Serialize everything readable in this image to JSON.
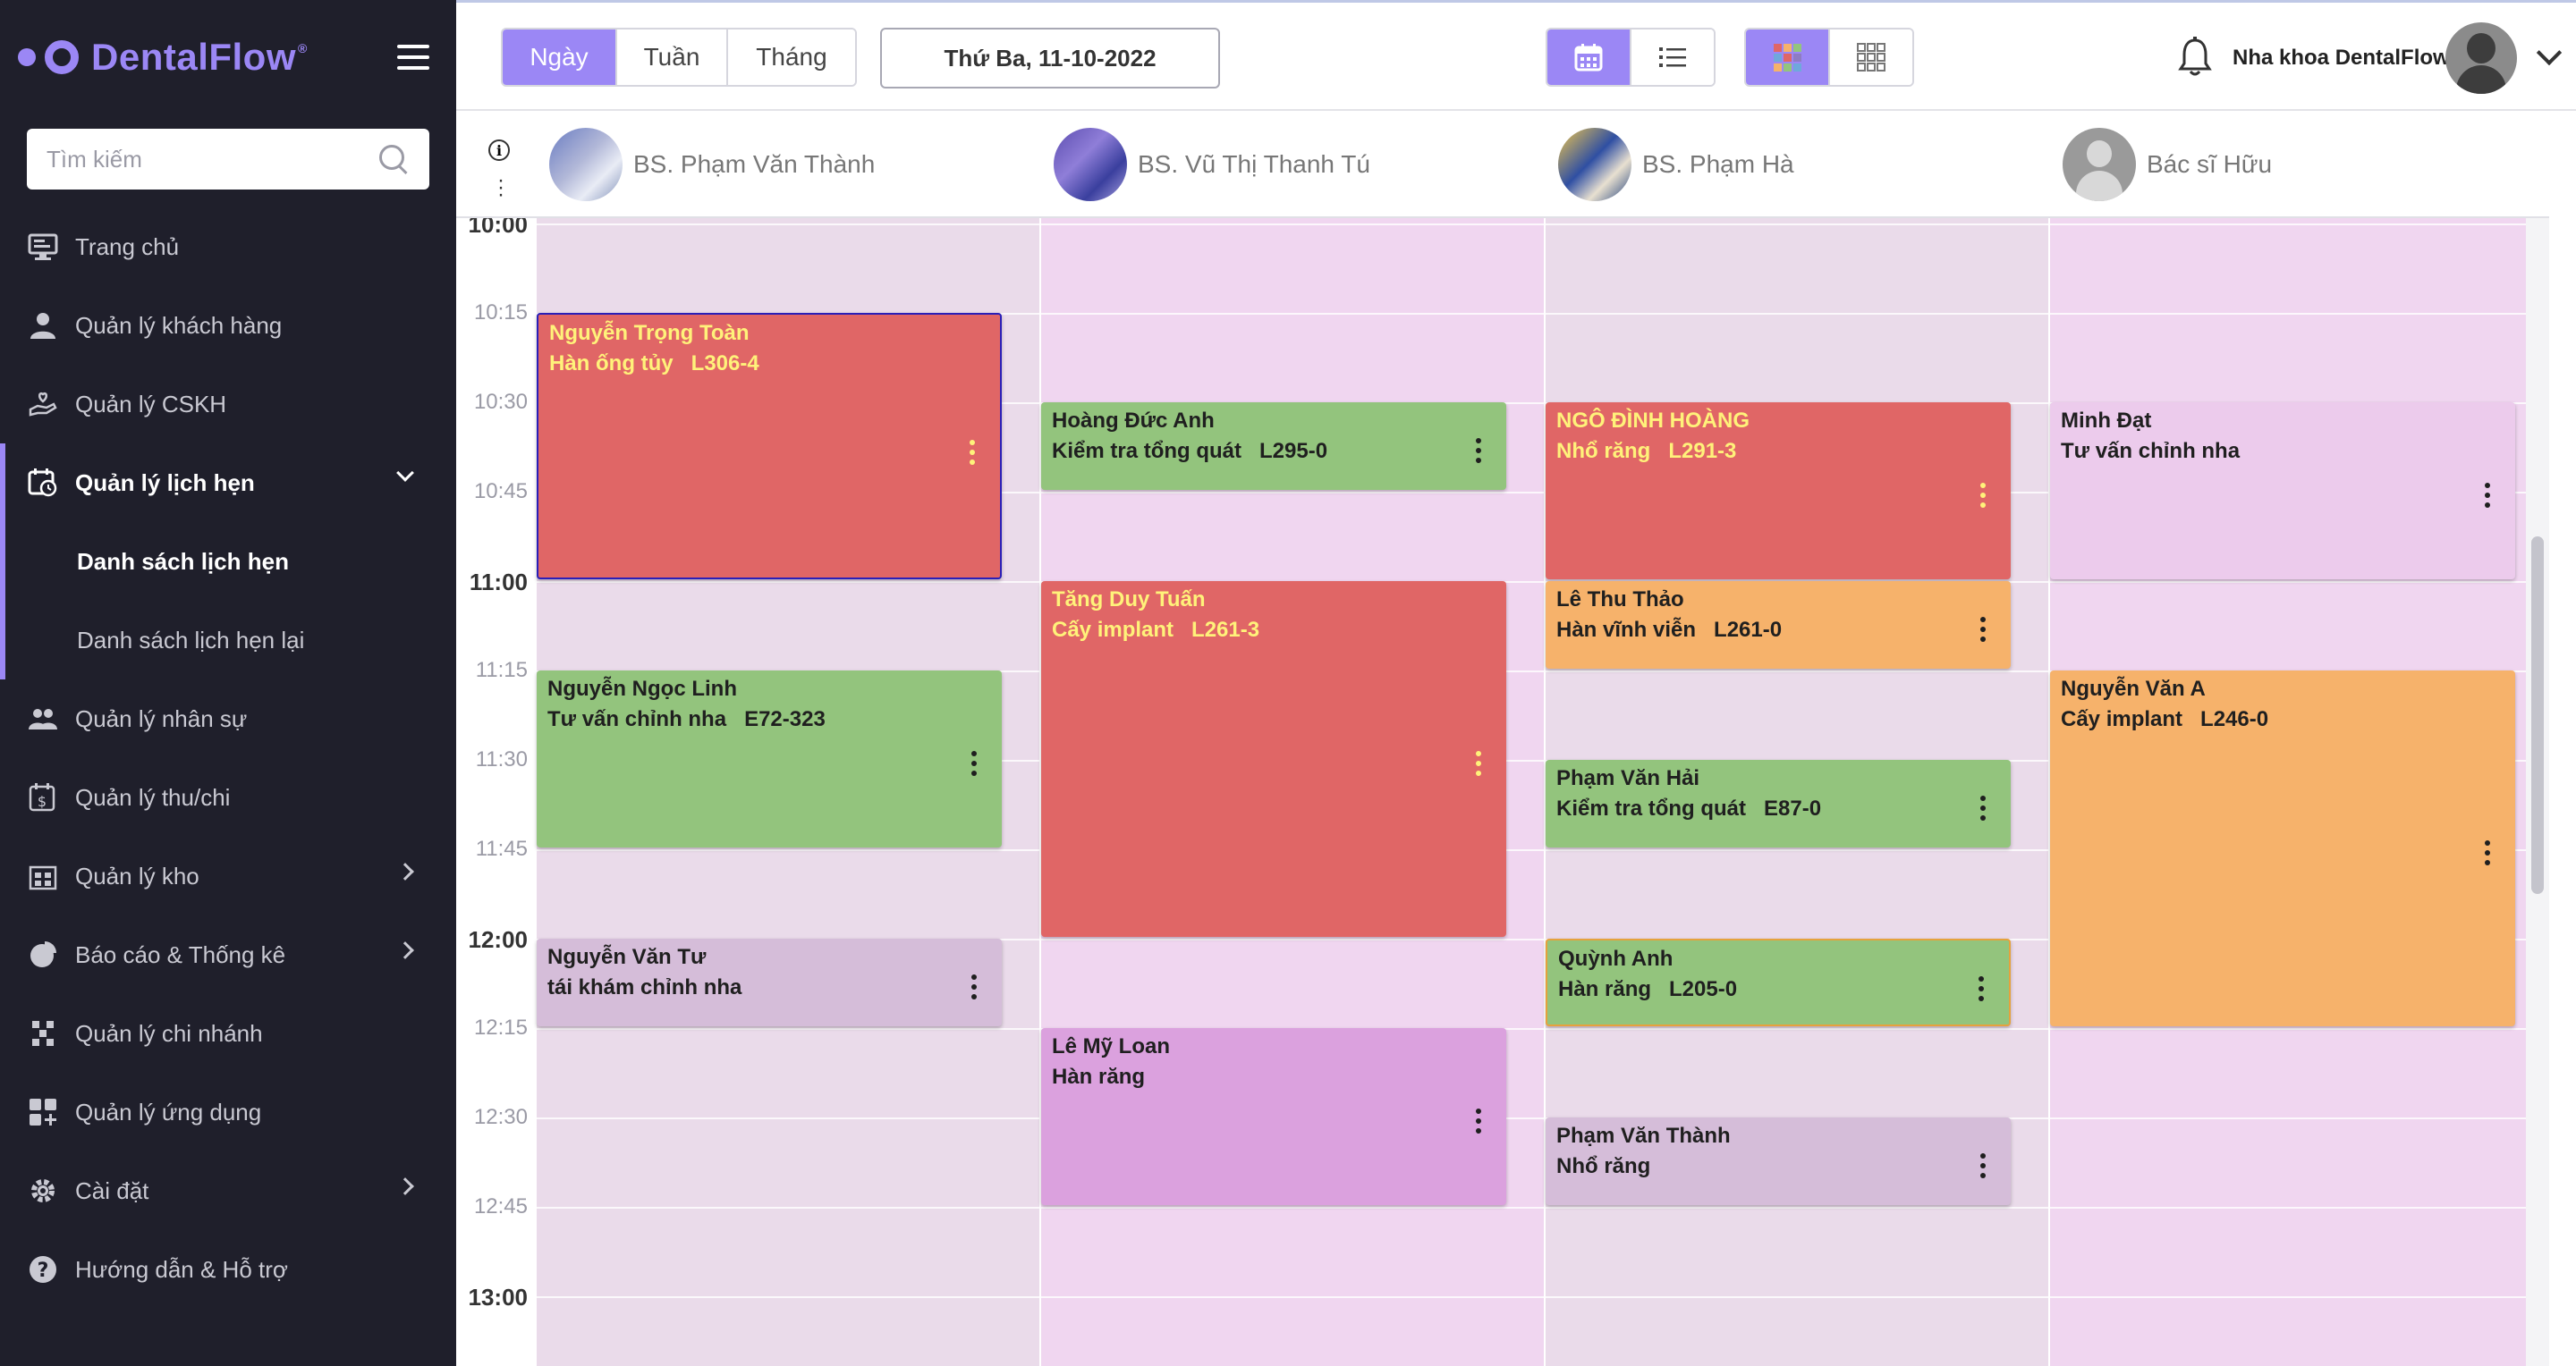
{
  "sidebar": {
    "brand": "DentalFlow",
    "brand_mark": "®",
    "search_placeholder": "Tìm kiếm",
    "items": [
      {
        "label": "Trang chủ",
        "icon": "monitor-icon"
      },
      {
        "label": "Quản lý khách hàng",
        "icon": "customer-icon"
      },
      {
        "label": "Quản lý CSKH",
        "icon": "hand-heart-icon"
      },
      {
        "label": "Quản lý lịch hẹn",
        "icon": "calendar-clock-icon",
        "expanded": true
      },
      {
        "label": "Quản lý nhân sự",
        "icon": "people-icon"
      },
      {
        "label": "Quản lý thu/chi",
        "icon": "money-icon"
      },
      {
        "label": "Quản lý kho",
        "icon": "warehouse-icon"
      },
      {
        "label": "Báo cáo & Thống kê",
        "icon": "pie-chart-icon"
      },
      {
        "label": "Quản lý chi nhánh",
        "icon": "branch-icon"
      },
      {
        "label": "Quản lý ứng dụng",
        "icon": "apps-icon"
      },
      {
        "label": "Cài đặt",
        "icon": "gear-icon"
      },
      {
        "label": "Hướng dẫn & Hỗ trợ",
        "icon": "help-icon"
      }
    ],
    "subitems": [
      "Danh sách lịch hẹn",
      "Danh sách lịch hẹn lại"
    ]
  },
  "topbar": {
    "views": [
      "Ngày",
      "Tuần",
      "Tháng"
    ],
    "active_view": "Ngày",
    "date": "Thứ Ba, 11-10-2022",
    "clinic_name": "Nha khoa DentalFlow"
  },
  "calendar": {
    "doctors": [
      "BS. Phạm Văn Thành",
      "BS. Vũ Thị Thanh Tú",
      "BS. Phạm Hà",
      "Bác sĩ Hữu"
    ],
    "times": [
      "10:00",
      "10:15",
      "10:30",
      "10:45",
      "11:00",
      "11:15",
      "11:30",
      "11:45",
      "12:00",
      "12:15",
      "12:30",
      "12:45",
      "13:00"
    ],
    "appointments": [
      {
        "doctor": 0,
        "start": "10:15",
        "end": "11:00",
        "name": "Nguyễn Trọng Toàn",
        "service": "Hàn ống tủy   L306-4",
        "status": "red"
      },
      {
        "doctor": 0,
        "start": "11:15",
        "end": "11:45",
        "name": "Nguyễn Ngọc Linh",
        "service": "Tư vấn chỉnh nha   E72-323",
        "status": "green"
      },
      {
        "doctor": 0,
        "start": "12:00",
        "end": "12:15",
        "name": "Nguyễn Văn Tư",
        "service": "tái khám chỉnh nha",
        "status": "mauve"
      },
      {
        "doctor": 1,
        "start": "10:30",
        "end": "10:45",
        "name": "Hoàng Đức Anh",
        "service": "Kiểm tra tổng quát   L295-0",
        "status": "green"
      },
      {
        "doctor": 1,
        "start": "11:00",
        "end": "12:00",
        "name": "Tăng Duy Tuấn",
        "service": "Cấy implant   L261-3",
        "status": "red"
      },
      {
        "doctor": 1,
        "start": "12:15",
        "end": "12:45",
        "name": "Lê Mỹ Loan",
        "service": "Hàn răng",
        "status": "violet"
      },
      {
        "doctor": 2,
        "start": "10:30",
        "end": "11:00",
        "name": "NGÔ ĐÌNH HOÀNG",
        "service": "Nhổ răng   L291-3",
        "status": "red"
      },
      {
        "doctor": 2,
        "start": "11:00",
        "end": "11:15",
        "name": "Lê Thu Thảo",
        "service": "Hàn vĩnh viễn   L261-0",
        "status": "orange"
      },
      {
        "doctor": 2,
        "start": "11:30",
        "end": "11:45",
        "name": "Phạm Văn Hải",
        "service": "Kiểm tra tổng quát   E87-0",
        "status": "green"
      },
      {
        "doctor": 2,
        "start": "12:00",
        "end": "12:15",
        "name": "Quỳnh Anh",
        "service": "Hàn răng   L205-0",
        "status": "green"
      },
      {
        "doctor": 2,
        "start": "12:30",
        "end": "12:45",
        "name": "Phạm Văn Thành",
        "service": "Nhổ răng",
        "status": "mauve"
      },
      {
        "doctor": 3,
        "start": "10:30",
        "end": "11:00",
        "name": "Minh Đạt",
        "service": "Tư vấn chỉnh nha",
        "status": "pink"
      },
      {
        "doctor": 3,
        "start": "11:15",
        "end": "12:15",
        "name": "Nguyễn Văn A",
        "service": "Cấy implant   L246-0",
        "status": "orange"
      }
    ]
  },
  "colors": {
    "accent": "#9b87f5",
    "sidebar_bg": "#1f1f2b",
    "red": "#e06666",
    "green": "#93c47d",
    "orange": "#f6b26b",
    "mauve": "#d5bdd9",
    "violet": "#dba1de",
    "pink": "#eccbec",
    "col_a": "#eadbea",
    "col_b": "#f0d6f0"
  }
}
